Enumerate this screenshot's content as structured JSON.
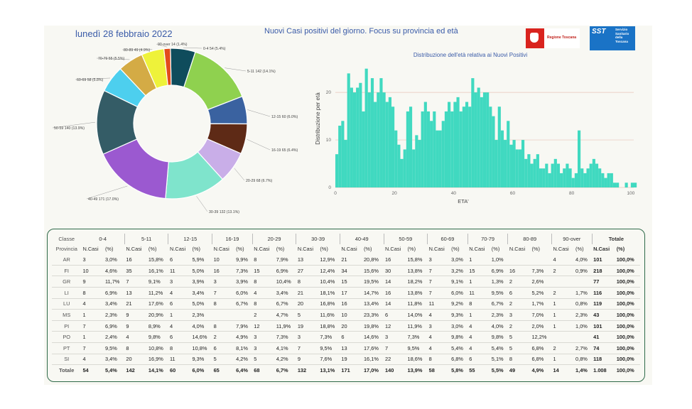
{
  "header": {
    "date": "lunedì 28 febbraio 2022",
    "title": "Nuovi Casi positivi del giorno. Focus su provincia ed età",
    "logo_rt_text": "Regione Toscana",
    "logo_sst_text": "SST",
    "logo_sst_sub": "Servizio Sanitario della Toscana"
  },
  "colors": {
    "teal": "#40d9c0",
    "grid": "#e8c4b8",
    "border": "#2f6a4a"
  },
  "chart_data": [
    {
      "type": "pie",
      "title": "",
      "donut": true,
      "slices": [
        {
          "label": "0-4 54 (5.4%)",
          "value": 54,
          "color": "#0f4c5c"
        },
        {
          "label": "5-11 142 (14.1%)",
          "value": 142,
          "color": "#8fd14f"
        },
        {
          "label": "12-15 60 (6.0%)",
          "value": 60,
          "color": "#3a62a0"
        },
        {
          "label": "16-19 65 (6.4%)",
          "value": 65,
          "color": "#5e2a16"
        },
        {
          "label": "20-29 68 (6.7%)",
          "value": 68,
          "color": "#c9aee8"
        },
        {
          "label": "30-39 132 (13.1%)",
          "value": 132,
          "color": "#7fe4cc"
        },
        {
          "label": "40-49 171 (17.0%)",
          "value": 171,
          "color": "#9b59d0"
        },
        {
          "label": "50-59 140 (13.9%)",
          "value": 140,
          "color": "#345c66"
        },
        {
          "label": "60-69 58 (5.8%)",
          "value": 58,
          "color": "#4dcfee"
        },
        {
          "label": "70-79 55 (5.5%)",
          "value": 55,
          "color": "#d4ab45"
        },
        {
          "label": "80-89 49 (4.9%)",
          "value": 49,
          "color": "#eef23a"
        },
        {
          "label": "90-over 14 (1.4%)",
          "value": 14,
          "color": "#e34c1c"
        }
      ]
    },
    {
      "type": "bar",
      "title": "Distribuzione dell'età relativa ai Nuovi Positivi",
      "xlabel": "ETA'",
      "ylabel": "Distribuzione per età",
      "xlim": [
        0,
        101
      ],
      "ylim": [
        0,
        26
      ],
      "xticks": [
        0,
        20,
        40,
        60,
        80,
        100
      ],
      "yticks": [
        0,
        10,
        20
      ],
      "grid": true,
      "color": "#40d9c0",
      "x": [
        0,
        1,
        2,
        3,
        4,
        5,
        6,
        7,
        8,
        9,
        10,
        11,
        12,
        13,
        14,
        15,
        16,
        17,
        18,
        19,
        20,
        21,
        22,
        23,
        24,
        25,
        26,
        27,
        28,
        29,
        30,
        31,
        32,
        33,
        34,
        35,
        36,
        37,
        38,
        39,
        40,
        41,
        42,
        43,
        44,
        45,
        46,
        47,
        48,
        49,
        50,
        51,
        52,
        53,
        54,
        55,
        56,
        57,
        58,
        59,
        60,
        61,
        62,
        63,
        64,
        65,
        66,
        67,
        68,
        69,
        70,
        71,
        72,
        73,
        74,
        75,
        76,
        77,
        78,
        79,
        80,
        81,
        82,
        83,
        84,
        85,
        86,
        87,
        88,
        89,
        90,
        91,
        92,
        93,
        94,
        95,
        96,
        97,
        98,
        99,
        100,
        101
      ],
      "values": [
        7,
        13,
        14,
        10,
        24,
        21,
        20,
        21,
        22,
        16,
        25,
        20,
        23,
        18,
        20,
        23,
        20,
        18,
        19,
        17,
        12,
        9,
        6,
        8,
        16,
        17,
        8,
        11,
        10,
        16,
        18,
        16,
        14,
        16,
        12,
        12,
        14,
        16,
        18,
        16,
        18,
        19,
        16,
        17,
        18,
        17,
        23,
        20,
        21,
        19,
        20,
        20,
        17,
        15,
        10,
        17,
        12,
        10,
        14,
        9,
        10,
        8,
        8,
        10,
        6,
        7,
        5,
        6,
        7,
        4,
        4,
        5,
        3,
        5,
        6,
        5,
        3,
        4,
        5,
        4,
        2,
        3,
        12,
        4,
        3,
        4,
        5,
        6,
        5,
        4,
        3,
        2,
        3,
        3,
        1,
        1,
        0,
        0,
        1,
        0,
        1,
        1
      ]
    }
  ],
  "table": {
    "group_headers": [
      "Classe",
      "0-4",
      "5-11",
      "12-15",
      "16-19",
      "20-29",
      "30-39",
      "40-49",
      "50-59",
      "60-69",
      "70-79",
      "80-89",
      "90-over",
      "Totale"
    ],
    "sub_headers": {
      "provincia": "Provincia",
      "ncasi": "N.Casi",
      "pct": "(%)"
    },
    "rows": [
      {
        "prov": "AR",
        "vals": [
          "3",
          "3,0%",
          "16",
          "15,8%",
          "6",
          "5,9%",
          "10",
          "9,9%",
          "8",
          "7,9%",
          "13",
          "12,9%",
          "21",
          "20,8%",
          "16",
          "15,8%",
          "3",
          "3,0%",
          "1",
          "1,0%",
          "",
          "",
          "4",
          "4,0%",
          "101",
          "100,0%"
        ]
      },
      {
        "prov": "FI",
        "vals": [
          "10",
          "4,6%",
          "35",
          "16,1%",
          "11",
          "5,0%",
          "16",
          "7,3%",
          "15",
          "6,9%",
          "27",
          "12,4%",
          "34",
          "15,6%",
          "30",
          "13,8%",
          "7",
          "3,2%",
          "15",
          "6,9%",
          "16",
          "7,3%",
          "2",
          "0,9%",
          "218",
          "100,0%"
        ]
      },
      {
        "prov": "GR",
        "vals": [
          "9",
          "11,7%",
          "7",
          "9,1%",
          "3",
          "3,9%",
          "3",
          "3,9%",
          "8",
          "10,4%",
          "8",
          "10,4%",
          "15",
          "19,5%",
          "14",
          "18,2%",
          "7",
          "9,1%",
          "1",
          "1,3%",
          "2",
          "2,6%",
          "",
          "",
          "77",
          "100,0%"
        ]
      },
      {
        "prov": "LI",
        "vals": [
          "8",
          "6,9%",
          "13",
          "11,2%",
          "4",
          "3,4%",
          "7",
          "6,0%",
          "4",
          "3,4%",
          "21",
          "18,1%",
          "17",
          "14,7%",
          "16",
          "13,8%",
          "7",
          "6,0%",
          "11",
          "9,5%",
          "6",
          "5,2%",
          "2",
          "1,7%",
          "116",
          "100,0%"
        ]
      },
      {
        "prov": "LU",
        "vals": [
          "4",
          "3,4%",
          "21",
          "17,6%",
          "6",
          "5,0%",
          "8",
          "6,7%",
          "8",
          "6,7%",
          "20",
          "16,8%",
          "16",
          "13,4%",
          "14",
          "11,8%",
          "11",
          "9,2%",
          "8",
          "6,7%",
          "2",
          "1,7%",
          "1",
          "0,8%",
          "119",
          "100,0%"
        ]
      },
      {
        "prov": "MS",
        "vals": [
          "1",
          "2,3%",
          "9",
          "20,9%",
          "1",
          "2,3%",
          "",
          "",
          "2",
          "4,7%",
          "5",
          "11,6%",
          "10",
          "23,3%",
          "6",
          "14,0%",
          "4",
          "9,3%",
          "1",
          "2,3%",
          "3",
          "7,0%",
          "1",
          "2,3%",
          "43",
          "100,0%"
        ]
      },
      {
        "prov": "PI",
        "vals": [
          "7",
          "6,9%",
          "9",
          "8,9%",
          "4",
          "4,0%",
          "8",
          "7,9%",
          "12",
          "11,9%",
          "19",
          "18,8%",
          "20",
          "19,8%",
          "12",
          "11,9%",
          "3",
          "3,0%",
          "4",
          "4,0%",
          "2",
          "2,0%",
          "1",
          "1,0%",
          "101",
          "100,0%"
        ]
      },
      {
        "prov": "PO",
        "vals": [
          "1",
          "2,4%",
          "4",
          "9,8%",
          "6",
          "14,6%",
          "2",
          "4,9%",
          "3",
          "7,3%",
          "3",
          "7,3%",
          "6",
          "14,6%",
          "3",
          "7,3%",
          "4",
          "9,8%",
          "4",
          "9,8%",
          "5",
          "12,2%",
          "",
          "",
          "41",
          "100,0%"
        ]
      },
      {
        "prov": "PT",
        "vals": [
          "7",
          "9,5%",
          "8",
          "10,8%",
          "8",
          "10,8%",
          "6",
          "8,1%",
          "3",
          "4,1%",
          "7",
          "9,5%",
          "13",
          "17,6%",
          "7",
          "9,5%",
          "4",
          "5,4%",
          "4",
          "5,4%",
          "5",
          "6,8%",
          "2",
          "2,7%",
          "74",
          "100,0%"
        ]
      },
      {
        "prov": "SI",
        "vals": [
          "4",
          "3,4%",
          "20",
          "16,9%",
          "11",
          "9,3%",
          "5",
          "4,2%",
          "5",
          "4,2%",
          "9",
          "7,6%",
          "19",
          "16,1%",
          "22",
          "18,6%",
          "8",
          "6,8%",
          "6",
          "5,1%",
          "8",
          "6,8%",
          "1",
          "0,8%",
          "118",
          "100,0%"
        ]
      }
    ],
    "total": {
      "prov": "Totale",
      "vals": [
        "54",
        "5,4%",
        "142",
        "14,1%",
        "60",
        "6,0%",
        "65",
        "6,4%",
        "68",
        "6,7%",
        "132",
        "13,1%",
        "171",
        "17,0%",
        "140",
        "13,9%",
        "58",
        "5,8%",
        "55",
        "5,5%",
        "49",
        "4,9%",
        "14",
        "1,4%",
        "1.008",
        "100,0%"
      ]
    }
  }
}
